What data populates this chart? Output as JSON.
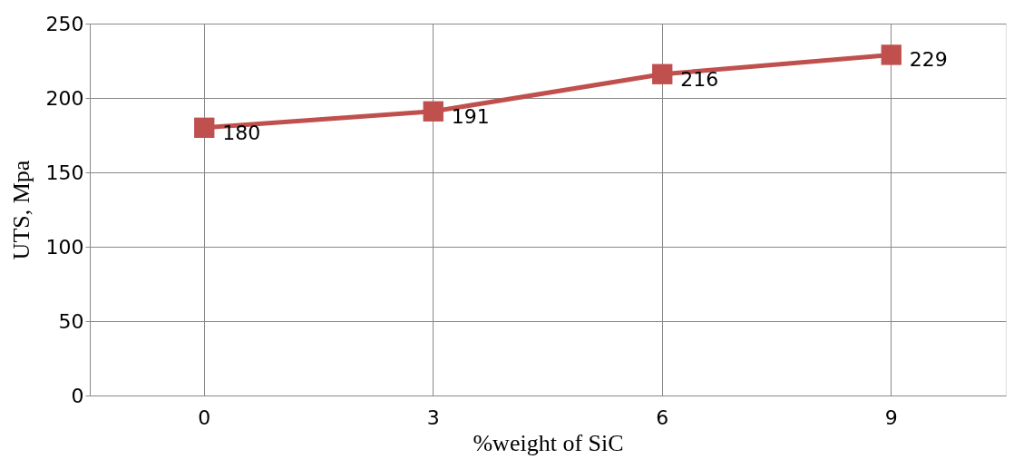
{
  "chart_data": {
    "type": "line",
    "xlabel": "%weight of SiC",
    "ylabel": "UTS, Mpa",
    "categories": [
      "0",
      "3",
      "6",
      "9"
    ],
    "series": [
      {
        "color": "#c0504d",
        "values": [
          180,
          191,
          216,
          229
        ]
      }
    ],
    "ylim": [
      0,
      250
    ],
    "yticks": [
      0,
      50,
      100,
      150,
      200,
      250
    ],
    "grid": true,
    "marker": "square",
    "data_labels": true
  }
}
